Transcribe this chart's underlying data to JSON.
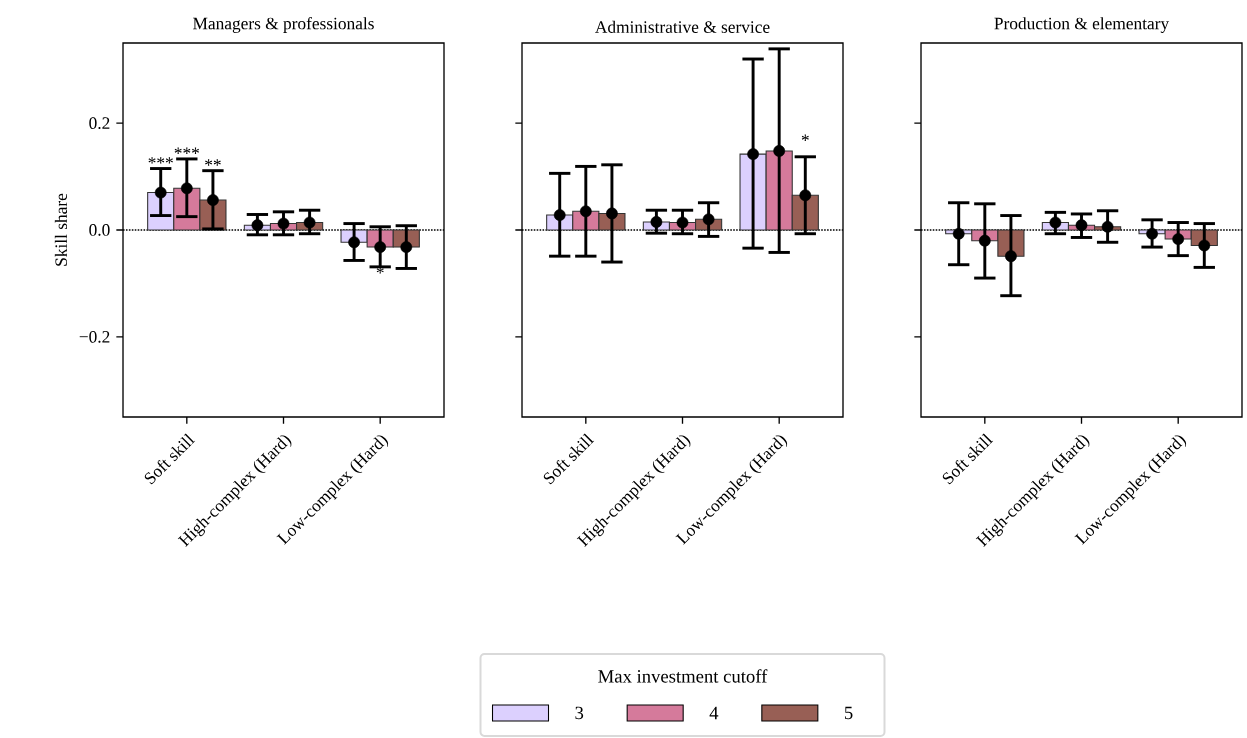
{
  "chart_data": [
    {
      "type": "bar",
      "title": "Managers & professionals",
      "ylabel": "Skill share",
      "categories": [
        "Soft skill",
        "High-complex (Hard)",
        "Low-complex (Hard)"
      ],
      "marker": "circle",
      "ylim": [
        -0.35,
        0.35
      ],
      "yticks": [
        {
          "value": -0.2,
          "label": "−0.2"
        },
        {
          "value": 0,
          "label": "0.0"
        },
        {
          "value": 0.2,
          "label": "0.2"
        }
      ],
      "ref_lines": [
        {
          "axis": "y",
          "value": 0,
          "line_style": "dotted"
        }
      ],
      "legend": "bottom",
      "legend_title": "Max investment cutoff",
      "series": [
        {
          "name": "3",
          "color": "#dcd0fe",
          "values": [
            0.07,
            0.009,
            -0.023
          ]
        },
        {
          "name": "4",
          "color": "#d57a9b",
          "values": [
            0.078,
            0.012,
            -0.032
          ]
        },
        {
          "name": "5",
          "color": "#985f55",
          "values": [
            0.056,
            0.014,
            -0.032
          ]
        },
        {
          "type": "scatter",
          "color": "#000000",
          "x": [
            "Soft skill",
            "High-complex (Hard)",
            "Low-complex (Hard)"
          ],
          "values": [
            0.07,
            0.009,
            -0.023
          ],
          "errors": [
            [
              0.027,
              0.115
            ],
            [
              -0.009,
              0.029
            ],
            [
              -0.057,
              0.012
            ]
          ],
          "value_labels": [
            "***",
            null,
            null
          ]
        },
        {
          "type": "scatter",
          "color": "#000000",
          "x": [
            "Soft skill",
            "High-complex (Hard)",
            "Low-complex (Hard)"
          ],
          "values": [
            0.078,
            0.012,
            -0.032
          ],
          "errors": [
            [
              0.025,
              0.133
            ],
            [
              -0.009,
              0.034
            ],
            [
              -0.069,
              0.006
            ]
          ],
          "value_labels": [
            "***",
            null,
            "*"
          ]
        },
        {
          "type": "scatter",
          "color": "#000000",
          "x": [
            "Soft skill",
            "High-complex (Hard)",
            "Low-complex (Hard)"
          ],
          "values": [
            0.056,
            0.014,
            -0.032
          ],
          "errors": [
            [
              0.002,
              0.111
            ],
            [
              -0.007,
              0.037
            ],
            [
              -0.072,
              0.008
            ]
          ],
          "value_labels": [
            "**",
            null,
            null
          ]
        }
      ]
    },
    {
      "type": "bar",
      "title": "Administrative & service",
      "categories": [
        "Soft skill",
        "High-complex (Hard)",
        "Low-complex (Hard)"
      ],
      "marker": "circle",
      "tick_labels": "x",
      "ylim": [
        -0.35,
        0.35
      ],
      "yticks": [
        {
          "value": -0.2,
          "label": null
        },
        {
          "value": 0,
          "label": null
        },
        {
          "value": 0.2,
          "label": null
        }
      ],
      "ref_lines": [
        {
          "axis": "y",
          "value": 0,
          "line_style": "dotted"
        }
      ],
      "annotations": [
        {
          "text": "*",
          "x": "Low-complex (Hard)",
          "y": 0.168
        }
      ],
      "series": [
        {
          "color": "#dcd0fe",
          "values": [
            0.028,
            0.015,
            0.142
          ]
        },
        {
          "color": "#d57a9b",
          "values": [
            0.035,
            0.014,
            0.148
          ]
        },
        {
          "color": "#985f55",
          "values": [
            0.031,
            0.02,
            0.065
          ]
        },
        {
          "type": "scatter",
          "color": "#000000",
          "x": [
            "Soft skill",
            "High-complex (Hard)",
            "Low-complex (Hard)"
          ],
          "values": [
            0.028,
            0.015,
            0.142
          ],
          "errors": [
            [
              -0.049,
              0.106
            ],
            [
              -0.006,
              0.037
            ],
            [
              -0.034,
              0.32
            ]
          ]
        },
        {
          "type": "scatter",
          "color": "#000000",
          "x": [
            "Soft skill",
            "High-complex (Hard)",
            "Low-complex (Hard)"
          ],
          "values": [
            0.035,
            0.014,
            0.148
          ],
          "errors": [
            [
              -0.049,
              0.119
            ],
            [
              -0.007,
              0.037
            ],
            [
              -0.042,
              0.339
            ]
          ]
        },
        {
          "type": "scatter",
          "color": "#000000",
          "x": [
            "Soft skill",
            "High-complex (Hard)",
            "Low-complex (Hard)"
          ],
          "values": [
            0.031,
            0.02,
            0.065
          ],
          "errors": [
            [
              -0.06,
              0.122
            ],
            [
              -0.012,
              0.051
            ],
            [
              -0.007,
              0.137
            ]
          ]
        }
      ]
    },
    {
      "type": "bar",
      "title": "Production & elementary",
      "categories": [
        "Soft skill",
        "High-complex (Hard)",
        "Low-complex (Hard)"
      ],
      "marker": "circle",
      "tick_labels": "x",
      "ylim": [
        -0.35,
        0.35
      ],
      "yticks": [
        {
          "value": -0.2,
          "label": null
        },
        {
          "value": 0,
          "label": null
        },
        {
          "value": 0.2,
          "label": null
        }
      ],
      "ref_lines": [
        {
          "axis": "y",
          "value": 0,
          "line_style": "dotted"
        }
      ],
      "series": [
        {
          "color": "#dcd0fe",
          "values": [
            -0.007,
            0.014,
            -0.007
          ]
        },
        {
          "color": "#d57a9b",
          "values": [
            -0.02,
            0.009,
            -0.017
          ]
        },
        {
          "color": "#985f55",
          "values": [
            -0.049,
            0.006,
            -0.029
          ]
        },
        {
          "type": "scatter",
          "color": "#000000",
          "x": [
            "Soft skill",
            "High-complex (Hard)",
            "Low-complex (Hard)"
          ],
          "values": [
            -0.007,
            0.014,
            -0.007
          ],
          "errors": [
            [
              -0.065,
              0.051
            ],
            [
              -0.007,
              0.033
            ],
            [
              -0.032,
              0.019
            ]
          ]
        },
        {
          "type": "scatter",
          "color": "#000000",
          "x": [
            "Soft skill",
            "High-complex (Hard)",
            "Low-complex (Hard)"
          ],
          "values": [
            -0.02,
            0.009,
            -0.017
          ],
          "errors": [
            [
              -0.09,
              0.049
            ],
            [
              -0.014,
              0.03
            ],
            [
              -0.048,
              0.014
            ]
          ]
        },
        {
          "type": "scatter",
          "color": "#000000",
          "x": [
            "Soft skill",
            "High-complex (Hard)",
            "Low-complex (Hard)"
          ],
          "values": [
            -0.049,
            0.006,
            -0.029
          ],
          "errors": [
            [
              -0.123,
              0.027
            ],
            [
              -0.023,
              0.036
            ],
            [
              -0.07,
              0.012
            ]
          ]
        }
      ]
    }
  ]
}
